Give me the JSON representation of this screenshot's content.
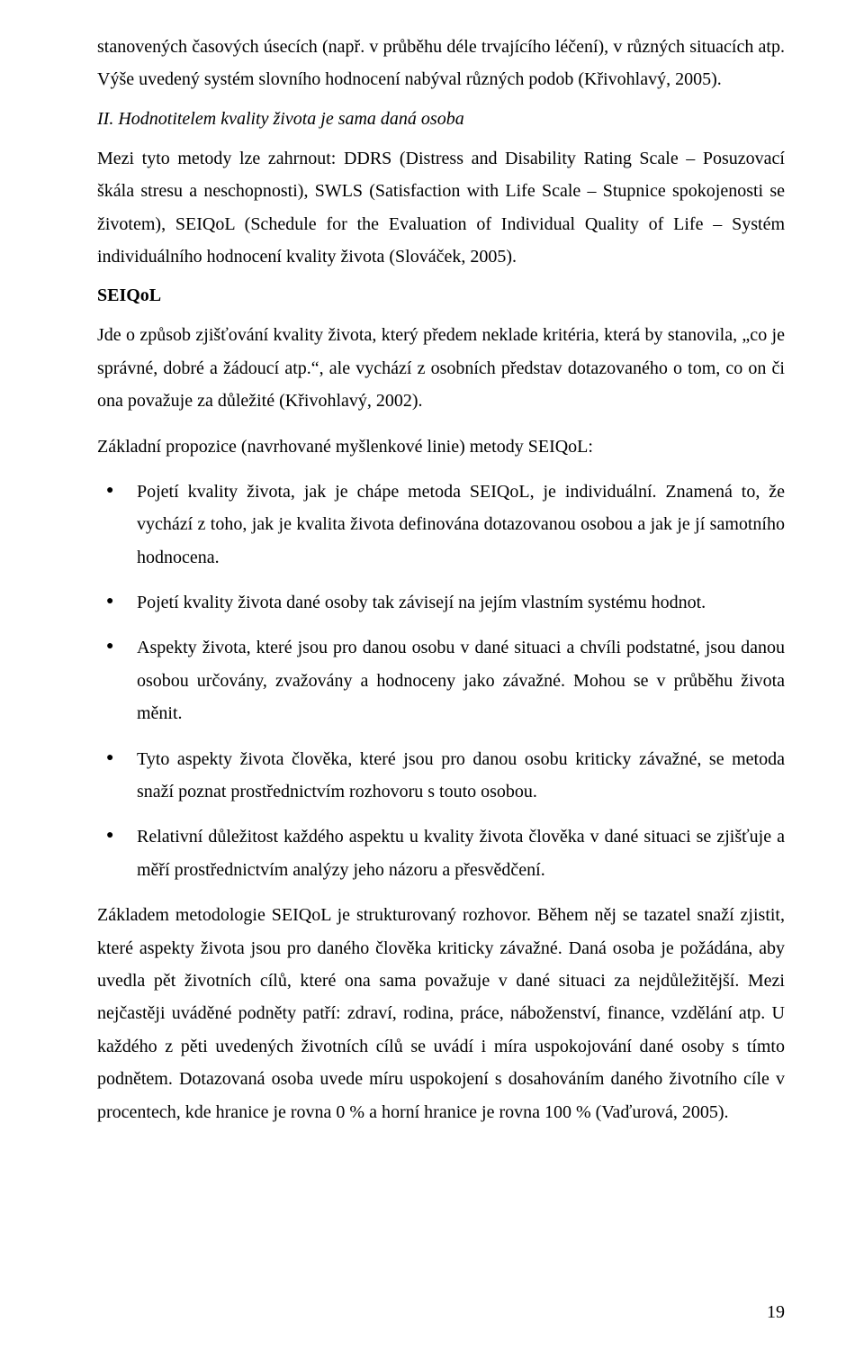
{
  "typography": {
    "font_family": "Times New Roman",
    "body_fontsize_pt": 15,
    "line_height": 1.82,
    "text_color": "#000000",
    "background_color": "#ffffff"
  },
  "p1": "stanovených časových úsecích (např. v průběhu déle trvajícího léčení), v různých situacích atp. Výše uvedený systém slovního hodnocení nabýval různých podob (Křivohlavý, 2005).",
  "h_ital": "II. Hodnotitelem kvality života je sama daná osoba",
  "p2": "Mezi tyto metody lze zahrnout: DDRS (Distress and Disability Rating Scale – Posuzovací škála stresu a neschopnosti), SWLS (Satisfaction with Life Scale – Stupnice spokojenosti se životem), SEIQoL (Schedule for the Evaluation of Individual Quality of Life – Systém individuálního hodnocení kvality života (Slováček, 2005).",
  "h_bold": "SEIQoL",
  "p3": "Jde o způsob zjišťování kvality života, který předem neklade kritéria, která by stanovila, „co je správné, dobré a žádoucí atp.“, ale vychází z osobních představ dotazovaného o tom, co on či ona považuje za důležité (Křivohlavý, 2002).",
  "p4": "Základní propozice (navrhované myšlenkové linie) metody SEIQoL:",
  "bullets": [
    "Pojetí kvality života, jak je chápe metoda SEIQoL, je individuální. Znamená to, že vychází z toho, jak je kvalita života definována dotazovanou osobou a jak je jí samotního hodnocena.",
    "Pojetí kvality života dané osoby tak závisejí na jejím vlastním systému hodnot.",
    "Aspekty života, které jsou pro danou osobu v dané situaci a chvíli podstatné, jsou danou osobou určovány, zvažovány a hodnoceny jako závažné. Mohou se v průběhu života měnit.",
    "Tyto aspekty života člověka, které jsou pro danou osobu kriticky závažné, se metoda snaží poznat prostřednictvím rozhovoru s touto osobou.",
    "Relativní důležitost každého aspektu u kvality života člověka v dané situaci se zjišťuje a měří prostřednictvím analýzy jeho názoru a přesvědčení."
  ],
  "p5": "Základem metodologie SEIQoL je strukturovaný rozhovor. Během něj se tazatel snaží zjistit, které aspekty života jsou pro daného člověka kriticky závažné. Daná osoba je požádána, aby uvedla pět životních cílů, které ona sama považuje v dané situaci za nejdůležitější. Mezi nejčastěji uváděné podněty patří: zdraví, rodina, práce, náboženství, finance, vzdělání atp. U každého z pěti uvedených životních cílů se uvádí i míra uspokojování dané osoby s tímto podnětem. Dotazovaná osoba uvede míru uspokojení s dosahováním daného životního cíle v procentech, kde hranice je rovna 0 % a horní hranice je rovna 100 % (Vaďurová, 2005).",
  "page_number": "19"
}
